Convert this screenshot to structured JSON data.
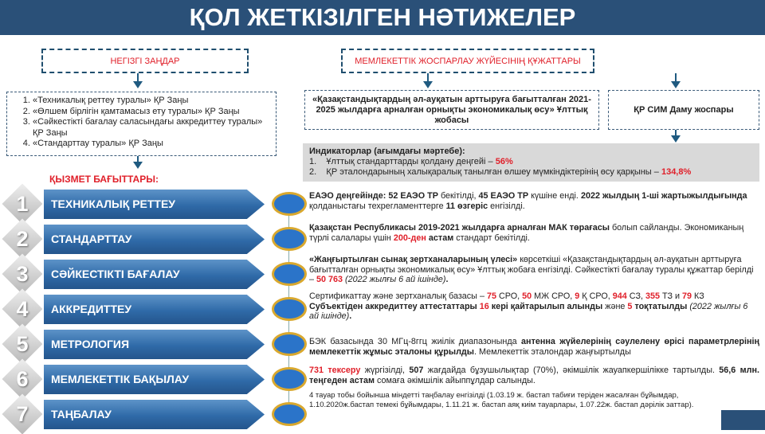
{
  "title": "ҚОЛ ЖЕТКІЗІЛГЕН НӘТИЖЕЛЕР",
  "left_header": "НЕГІЗГІ ЗАҢДАР",
  "right_header": "МЕМЛЕКЕТТІК ЖОСПАРЛАУ ЖҮЙЕСІНІҢ ҚҰЖАТТАРЫ",
  "laws": [
    "«Техникалық реттеу туралы» ҚР Заңы",
    "«Өлшем бірлігін қамтамасыз ету туралы» ҚР Заңы",
    "«Сәйкестікті бағалау саласындағы аккредиттеу туралы» ҚР Заңы",
    "«Стандарттау туралы» ҚР Заңы"
  ],
  "national_project": "«Қазақстандықтардың әл-ауқатын арттыруға бағытталған 2021-2025 жылдарға арналған орнықты экономикалық өсу» Ұлттық жобасы",
  "sim_plan": "ҚР СИМ Даму жоспары",
  "indicators": {
    "title": "Индикаторлар (ағымдағы мәртебе):",
    "items": [
      {
        "text": "Ұлттық стандарттарды қолдану деңгейі – ",
        "value": "56%"
      },
      {
        "text": "ҚР эталондарының халықаралық танылған өлшеу мүмкіндіктерінің өсу қарқыны – ",
        "value": "134,8%"
      }
    ]
  },
  "directions_label": "ҚЫЗМЕТ БАҒЫТТАРЫ:",
  "directions": [
    {
      "num": "1",
      "label": "ТЕХНИКАЛЫҚ РЕТТЕУ",
      "segments": [
        {
          "t": "ЕАЭО деңгейінде",
          "s": "b"
        },
        {
          "t": ": 52 ЕАЭО ТР ",
          "s": "b"
        },
        {
          "t": "бекітілді, "
        },
        {
          "t": "45 ЕАЭО ТР ",
          "s": "b"
        },
        {
          "t": "күшіне енді. "
        },
        {
          "t": "2022 жылдың 1-ші жартыжылдығында ",
          "s": "b"
        },
        {
          "t": "қолданыстағы техрегламенттерге "
        },
        {
          "t": "11 өзгеріс ",
          "s": "b"
        },
        {
          "t": "енгізілді."
        }
      ]
    },
    {
      "num": "2",
      "label": "СТАНДАРТТАУ",
      "segments": [
        {
          "t": "Қазақстан Республикасы 2019-2021 жылдарға арналған МАК төрағасы ",
          "s": "b"
        },
        {
          "t": "болып сайланды. Экономиканың түрлі салалары үшін "
        },
        {
          "t": "200-ден ",
          "s": "r"
        },
        {
          "t": "астам ",
          "s": "b"
        },
        {
          "t": "стандарт бекітілді."
        }
      ]
    },
    {
      "num": "3",
      "label": "СӘЙКЕСТІКТІ БАҒАЛАУ",
      "segments": [
        {
          "t": "«Жаңғыртылған сынақ зертханаларының үлесі» ",
          "s": "b"
        },
        {
          "t": "көрсеткіші «Қазақстандықтардың әл-ауқатын арттыруға бағытталған орнықты экономикалық өсу» Ұлттық жобаға енгізілді. Сәйкестікті бағалау туралы құжаттар берілді – "
        },
        {
          "t": "50 763 ",
          "s": "r"
        },
        {
          "t": "(2022 жылғы 6 ай ішінде)",
          "s": "i"
        },
        {
          "t": ".",
          "s": "b"
        }
      ]
    },
    {
      "num": "4",
      "label": "АККРЕДИТТЕУ",
      "segments": [
        {
          "t": "Сертификаттау және зертханалық базасы – "
        },
        {
          "t": "75 ",
          "s": "r"
        },
        {
          "t": "СРО, "
        },
        {
          "t": "50 ",
          "s": "r"
        },
        {
          "t": "МЖ СРО, "
        },
        {
          "t": "9 ",
          "s": "r"
        },
        {
          "t": "Қ СРО, "
        },
        {
          "t": "944 ",
          "s": "r"
        },
        {
          "t": "СЗ, "
        },
        {
          "t": "355 ",
          "s": "r"
        },
        {
          "t": "ТЗ и "
        },
        {
          "t": "79 ",
          "s": "r"
        },
        {
          "t": "КЗ "
        },
        {
          "t": "Субъектіден аккредиттеу аттестаттары ",
          "s": "b"
        },
        {
          "t": "16 ",
          "s": "r"
        },
        {
          "t": "кері қайтарылып алынды ",
          "s": "b"
        },
        {
          "t": "және "
        },
        {
          "t": "5 ",
          "s": "r"
        },
        {
          "t": "тоқтатылды ",
          "s": "b"
        },
        {
          "t": "(2022 жылғы 6 ай ішінде)",
          "s": "i"
        },
        {
          "t": ".",
          "s": "b"
        }
      ]
    },
    {
      "num": "5",
      "label": "МЕТРОЛОГИЯ",
      "segments": [
        {
          "t": "БЭК базасында 30 МГц-8ггц жиілік диапазонында "
        },
        {
          "t": "антенна жүйелерінің сәулелену өрісі параметрлерінің мемлекеттік жұмыс эталоны құрылды",
          "s": "b"
        },
        {
          "t": ". Мемлекеттік эталондар жаңғыртылды"
        }
      ]
    },
    {
      "num": "6",
      "label": "МЕМЛЕКЕТТІК БАҚЫЛАУ",
      "segments": [
        {
          "t": "731 тексеру ",
          "s": "r"
        },
        {
          "t": "жүргізілді, "
        },
        {
          "t": "507 ",
          "s": "b"
        },
        {
          "t": "жағдайда бұзушылықтар (70%), әкімшілік жауапкершілікке тартылды. "
        },
        {
          "t": "56,6 млн. теңгеден астам ",
          "s": "b"
        },
        {
          "t": "сомаға әкімшілік айыппұлдар салынды."
        }
      ]
    },
    {
      "num": "7",
      "label": "ТАҢБАЛАУ",
      "segments": [
        {
          "t": "4 тауар тобы бойынша міндетті таңбалау енгізілді (1.03.19 ж. бастап табиғи теріден жасалған бұйымдар, 1.10.2020ж.бастап темекі бұйымдары, 1.11.21 ж. бастап аяқ киім тауарлары, 1.07.22ж. бастап дәрілік заттар)."
        }
      ]
    }
  ],
  "colors": {
    "title_bg": "#2a5078",
    "accent_red": "#e0202a",
    "arrow_blue": "#2f6aa8",
    "ellipse_border": "#d9a82e"
  }
}
